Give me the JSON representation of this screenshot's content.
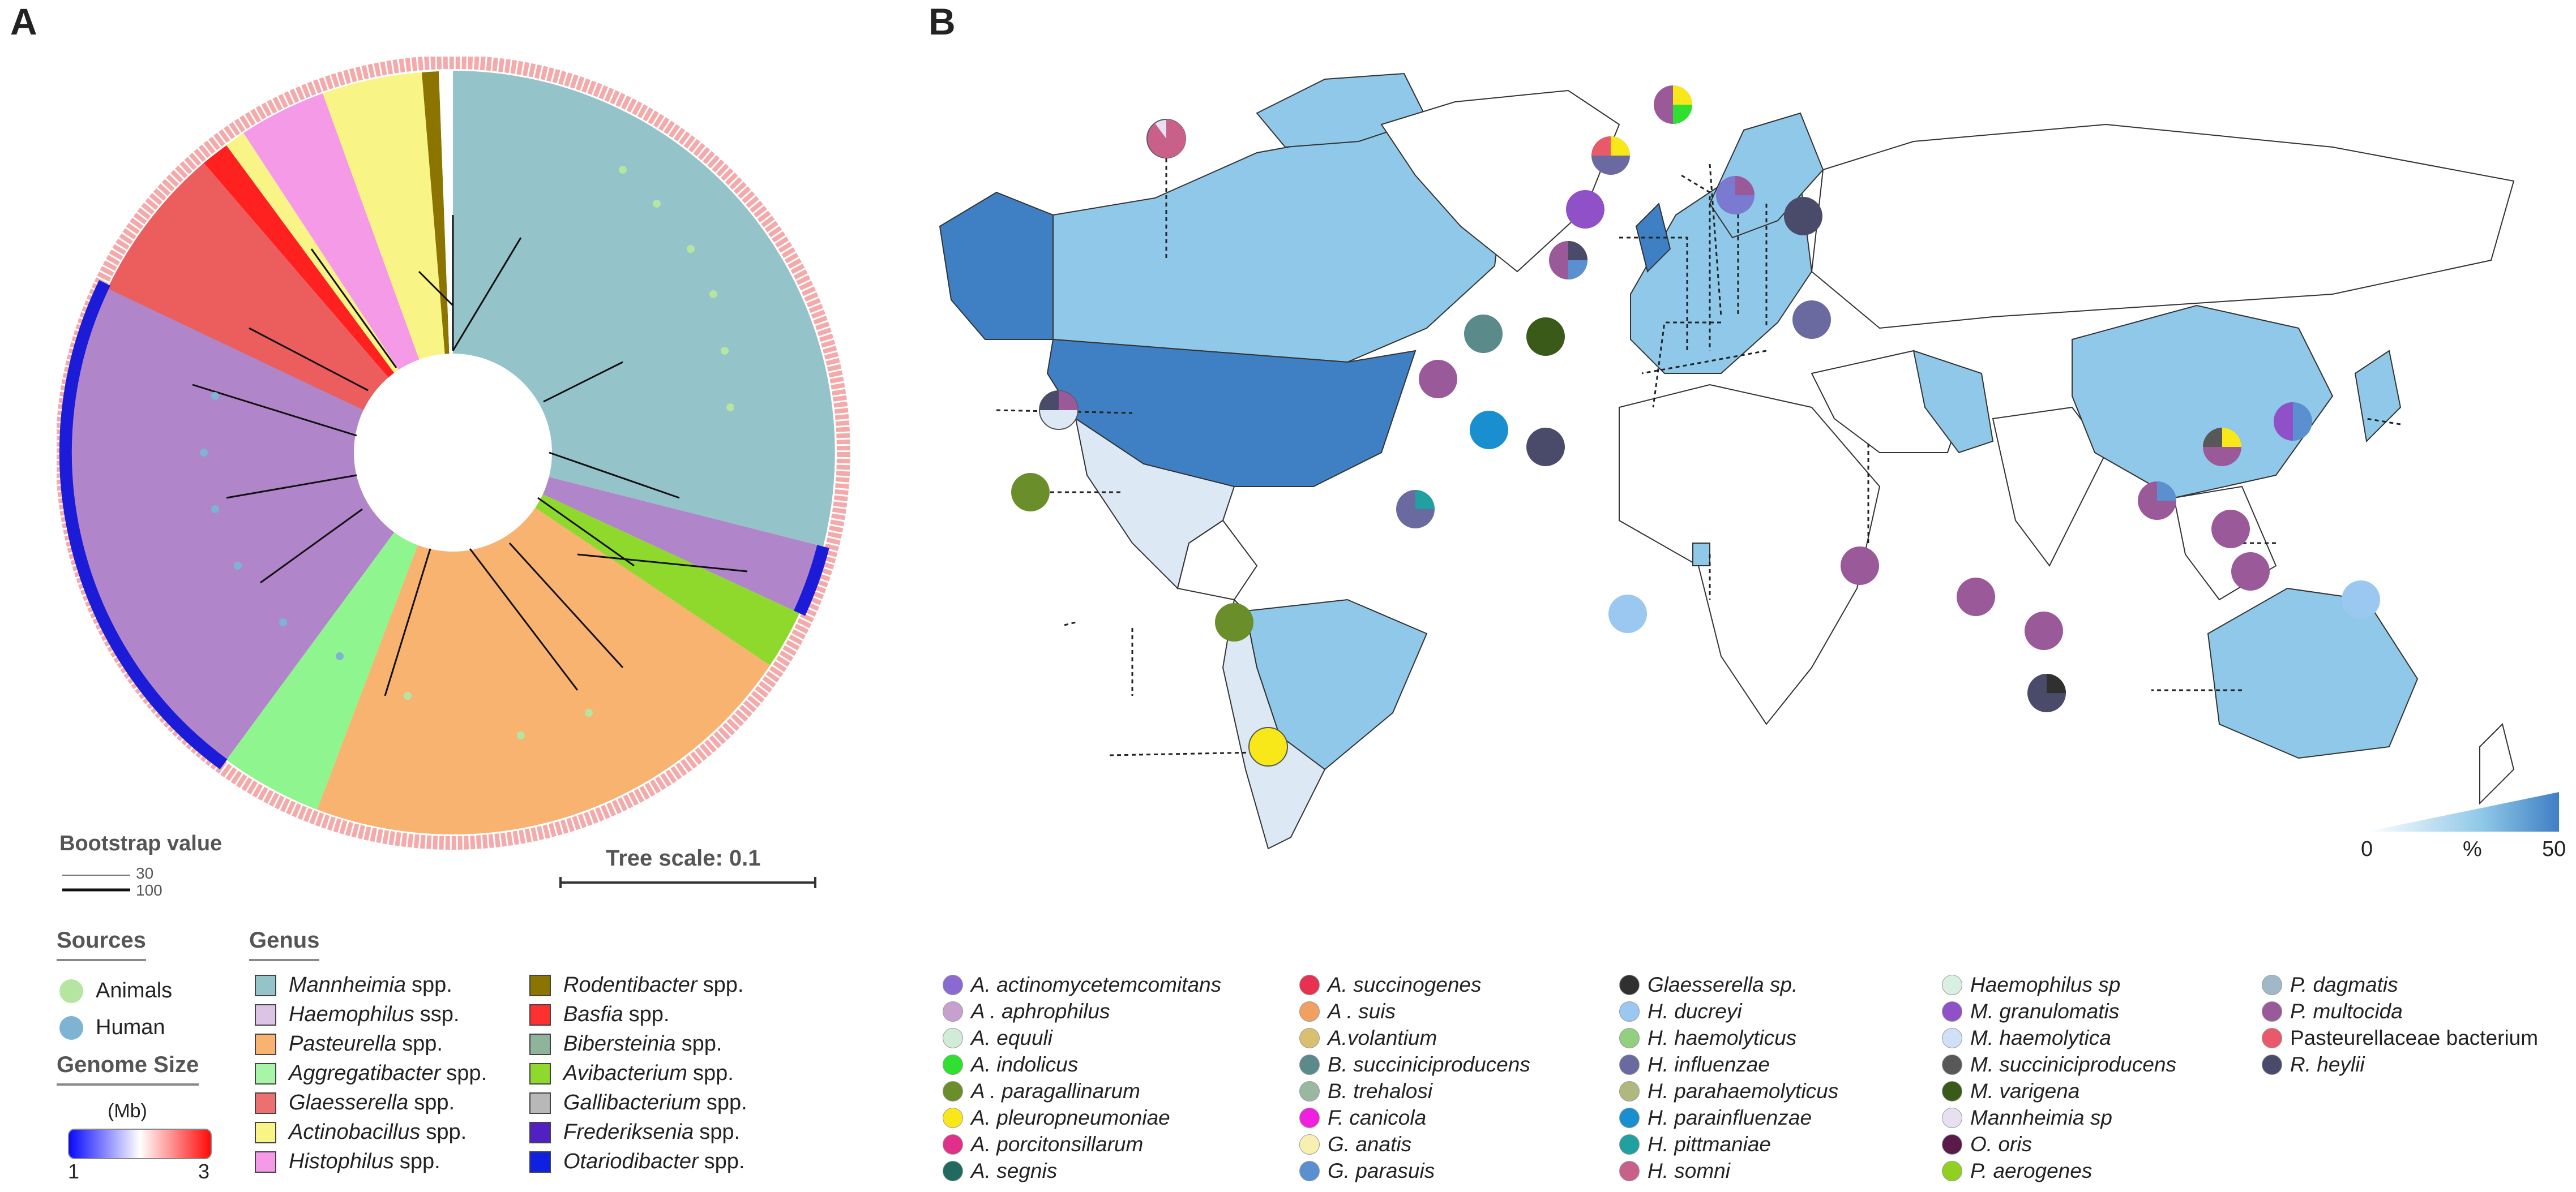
{
  "panels": {
    "a": "A",
    "b": "B"
  },
  "tree": {
    "scale_label": "Tree scale: 0.1",
    "bootstrap_title": "Bootstrap value",
    "bootstrap_low": "30",
    "bootstrap_high": "100",
    "clades": [
      {
        "genus": "Mannheimia",
        "color": "#94c3c9"
      },
      {
        "genus": "Haemophilus",
        "color": "#b085c9"
      },
      {
        "genus": "Pasteurella",
        "color": "#f8b370"
      },
      {
        "genus": "Aggregatibacter",
        "color": "#8ff58f"
      },
      {
        "genus": "Glaesserella",
        "color": "#ec5d5d"
      },
      {
        "genus": "Actinobacillus",
        "color": "#f8f586"
      },
      {
        "genus": "Histophilus",
        "color": "#f59ae7"
      },
      {
        "genus": "Rodentibacter",
        "color": "#8b7400"
      },
      {
        "genus": "Basfia",
        "color": "#ff2020"
      },
      {
        "genus": "Bibersteinia",
        "color": "#8fb49b"
      },
      {
        "genus": "Avibacterium",
        "color": "#8fd92c"
      },
      {
        "genus": "Otariodibacter",
        "color": "#1010e0"
      }
    ]
  },
  "sources": {
    "title": "Sources",
    "items": [
      {
        "label": "Animals",
        "color": "#b5e5a0"
      },
      {
        "label": "Human",
        "color": "#7fb3d3"
      }
    ]
  },
  "genome_size": {
    "title": "Genome Size",
    "unit": "(Mb)",
    "min": "1",
    "max": "3"
  },
  "genus": {
    "title": "Genus",
    "items": [
      {
        "name": "Mannheimia",
        "suffix": "spp.",
        "color": "#94c3c9"
      },
      {
        "name": "Haemophilus",
        "suffix": "ssp.",
        "color": "#dcc4e4"
      },
      {
        "name": "Pasteurella",
        "suffix": "spp.",
        "color": "#f8b370"
      },
      {
        "name": "Aggregatibacter",
        "suffix": "spp.",
        "color": "#a8f5a8"
      },
      {
        "name": "Glaesserella",
        "suffix": "spp.",
        "color": "#ec7070"
      },
      {
        "name": "Actinobacillus",
        "suffix": "spp.",
        "color": "#f8f586"
      },
      {
        "name": "Histophilus",
        "suffix": "spp.",
        "color": "#f59ae7"
      },
      {
        "name": "Rodentibacter",
        "suffix": "spp.",
        "color": "#8b7400"
      },
      {
        "name": "Basfia",
        "suffix": "spp.",
        "color": "#ff3030"
      },
      {
        "name": "Bibersteinia",
        "suffix": "spp.",
        "color": "#8fb49b"
      },
      {
        "name": "Avibacterium",
        "suffix": "spp.",
        "color": "#8fd92c"
      },
      {
        "name": "Gallibacterium",
        "suffix": "spp.",
        "color": "#b8b8b8"
      },
      {
        "name": "Frederiksenia",
        "suffix": "spp.",
        "color": "#5020c0"
      },
      {
        "name": "Otariodibacter",
        "suffix": "spp.",
        "color": "#1020e0"
      }
    ]
  },
  "map_scale": {
    "min": "0",
    "unit": "%",
    "max": "50"
  },
  "species": [
    {
      "name": "A. actinomycetemcomitans",
      "color": "#8a6ad0"
    },
    {
      "name": "A . aphrophilus",
      "color": "#c8a0d0"
    },
    {
      "name": "A. equuli",
      "color": "#d0ecd8"
    },
    {
      "name": "A. indolicus",
      "color": "#30e030"
    },
    {
      "name": "A . paragallinarum",
      "color": "#6a8f2a"
    },
    {
      "name": "A. pleuropneumoniae",
      "color": "#f8e81a"
    },
    {
      "name": "A. porcitonsillarum",
      "color": "#e0308a"
    },
    {
      "name": "A. segnis",
      "color": "#206a60"
    },
    {
      "name": "A. succinogenes",
      "color": "#e83050"
    },
    {
      "name": "A . suis",
      "color": "#f0a060"
    },
    {
      "name": "A.volantium",
      "color": "#d8c070"
    },
    {
      "name": "B. succiniciproducens",
      "color": "#5a8a8a"
    },
    {
      "name": "B. trehalosi",
      "color": "#9ab8a0"
    },
    {
      "name": "F. canicola",
      "color": "#f020e0"
    },
    {
      "name": "G. anatis",
      "color": "#f8f0b0"
    },
    {
      "name": "G. parasuis",
      "color": "#5a90d0"
    },
    {
      "name": "Glaesserella sp.",
      "color": "#303030"
    },
    {
      "name": "H. ducreyi",
      "color": "#9ac8f0"
    },
    {
      "name": "H.  haemolyticus",
      "color": "#90d080"
    },
    {
      "name": "H. influenzae",
      "color": "#6a6aa0"
    },
    {
      "name": "H. parahaemolyticus",
      "color": "#b0b880"
    },
    {
      "name": "H. parainfluenzae",
      "color": "#1a8fd0"
    },
    {
      "name": "H. pittmaniae",
      "color": "#20a0a0"
    },
    {
      "name": "H. somni",
      "color": "#c8608a"
    },
    {
      "name": "Haemophilus sp",
      "color": "#d8f0e0"
    },
    {
      "name": "M. granulomatis",
      "color": "#9050c8"
    },
    {
      "name": "M. haemolytica",
      "color": "#d0e0f8"
    },
    {
      "name": "M. succiniciproducens",
      "color": "#585858"
    },
    {
      "name": "M. varigena",
      "color": "#3a5a1a"
    },
    {
      "name": "Mannheimia sp",
      "color": "#e8e0f0"
    },
    {
      "name": "O. oris",
      "color": "#5a1a4a"
    },
    {
      "name": "P. aerogenes",
      "color": "#90d020"
    },
    {
      "name": "P. dagmatis",
      "color": "#a0b8c8"
    },
    {
      "name": "P. multocida",
      "color": "#9a5a9a"
    },
    {
      "name": "Pasteurellaceae bacterium",
      "color": "#e85a6a"
    },
    {
      "name": "R. heylii",
      "color": "#4a4a6a"
    }
  ]
}
